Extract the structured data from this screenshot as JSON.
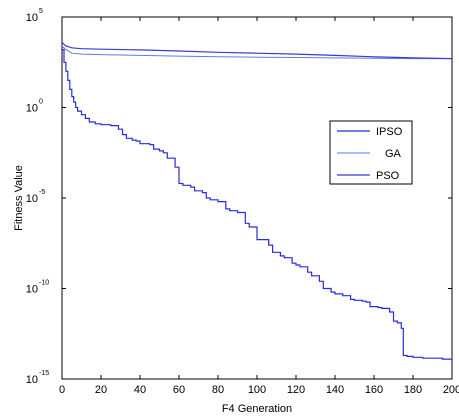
{
  "chart_data": {
    "type": "line",
    "xlabel": "F4 Generation",
    "ylabel": "Fitness Value",
    "xlim": [
      0,
      200
    ],
    "ylim_log10": [
      -15,
      5
    ],
    "yscale": "log",
    "grid": false,
    "legend": {
      "placement": "right",
      "entries": [
        "IPSO",
        "GA",
        "PSO"
      ]
    },
    "x_ticks": [
      "0",
      "20",
      "40",
      "60",
      "80",
      "100",
      "120",
      "140",
      "160",
      "180",
      "200"
    ],
    "y_ticks": [
      {
        "base": "10",
        "exp": "5"
      },
      {
        "base": "10",
        "exp": "0"
      },
      {
        "base": "10",
        "exp": "-5"
      },
      {
        "base": "10",
        "exp": "-10"
      },
      {
        "base": "10",
        "exp": "-15"
      }
    ],
    "series": [
      {
        "name": "IPSO",
        "color": "#2a2ae0",
        "x": [
          0,
          1,
          2,
          3,
          4,
          5,
          6,
          7,
          8,
          10,
          12,
          14,
          17,
          20,
          25,
          29,
          31,
          33,
          36,
          38,
          40,
          45,
          47,
          50,
          52,
          54,
          58,
          60,
          62,
          66,
          68,
          72,
          74,
          76,
          80,
          84,
          86,
          90,
          94,
          96,
          100,
          106,
          108,
          112,
          114,
          118,
          120,
          122,
          126,
          128,
          132,
          134,
          138,
          140,
          144,
          148,
          150,
          154,
          156,
          158,
          162,
          164,
          166,
          168,
          170,
          172,
          174,
          175,
          177,
          180,
          185,
          190,
          195,
          200
        ],
        "log10_y": [
          3.2,
          2.5,
          2.0,
          1.5,
          1.0,
          0.6,
          0.3,
          0.0,
          -0.2,
          -0.4,
          -0.6,
          -0.8,
          -0.9,
          -0.95,
          -1.0,
          -1.2,
          -1.5,
          -1.7,
          -1.8,
          -1.85,
          -2.0,
          -2.05,
          -2.3,
          -2.4,
          -2.5,
          -2.8,
          -3.3,
          -4.2,
          -4.3,
          -4.4,
          -4.6,
          -4.7,
          -5.0,
          -5.1,
          -5.2,
          -5.6,
          -5.7,
          -5.8,
          -6.4,
          -6.6,
          -7.3,
          -7.6,
          -8.0,
          -8.2,
          -8.3,
          -8.6,
          -8.7,
          -8.8,
          -9.1,
          -9.3,
          -9.6,
          -10.0,
          -10.2,
          -10.3,
          -10.4,
          -10.6,
          -10.65,
          -10.7,
          -10.75,
          -11.0,
          -11.05,
          -11.1,
          -11.1,
          -11.3,
          -11.8,
          -11.9,
          -12.2,
          -13.7,
          -13.75,
          -13.8,
          -13.85,
          -13.85,
          -13.9,
          -13.9
        ]
      },
      {
        "name": "GA",
        "color": "#5a7fe8",
        "x": [
          0,
          2,
          5,
          10,
          20,
          40,
          60,
          80,
          100,
          120,
          140,
          160,
          180,
          200
        ],
        "log10_y": [
          3.4,
          3.2,
          3.0,
          2.95,
          2.92,
          2.88,
          2.84,
          2.8,
          2.78,
          2.76,
          2.74,
          2.72,
          2.7,
          2.7
        ]
      },
      {
        "name": "PSO",
        "color": "#3b3bd0",
        "x": [
          0,
          2,
          5,
          10,
          20,
          40,
          60,
          80,
          100,
          120,
          140,
          160,
          180,
          200
        ],
        "log10_y": [
          3.6,
          3.4,
          3.3,
          3.25,
          3.22,
          3.18,
          3.12,
          3.05,
          3.0,
          2.95,
          2.88,
          2.8,
          2.74,
          2.7
        ]
      }
    ]
  }
}
